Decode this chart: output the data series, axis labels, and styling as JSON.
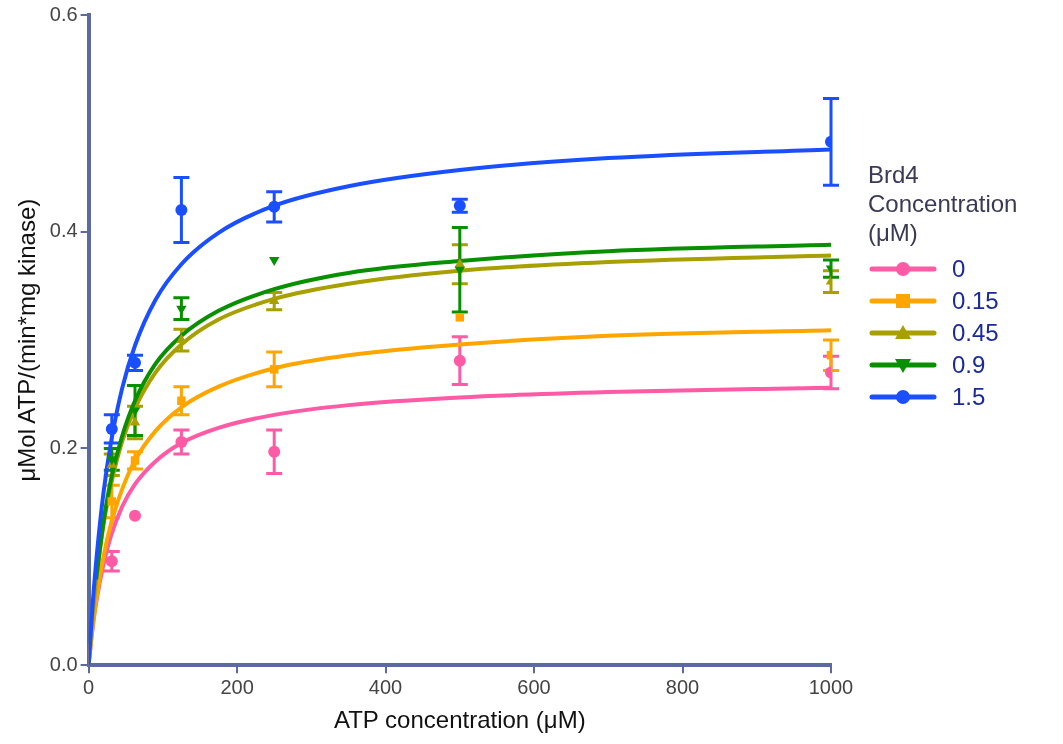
{
  "chart_data": {
    "type": "scatter",
    "xlabel": "ATP concentration (μM)",
    "ylabel": "μMol ATP/(min*mg kinase)",
    "legend_title": "Brd4 Concentration (μM)",
    "legend": "right",
    "grid": false,
    "xlim": [
      0,
      1000
    ],
    "xticks": [
      0,
      200,
      400,
      600,
      800,
      1000
    ],
    "ylim": [
      0,
      0.6
    ],
    "yticks": [
      {
        "value": 0,
        "label": "0.0"
      },
      0.2,
      0.4,
      0.6
    ],
    "series": [
      {
        "type": "line",
        "color": "#ff5aa5",
        "marker": "none",
        "x": [
          0,
          5,
          10,
          20,
          30,
          45,
          62.5,
          90,
          125,
          175,
          250,
          350,
          500,
          700,
          1000
        ],
        "values": [
          0,
          0.032,
          0.057,
          0.093,
          0.119,
          0.146,
          0.167,
          0.188,
          0.205,
          0.219,
          0.231,
          0.24,
          0.247,
          0.252,
          0.256
        ]
      },
      {
        "type": "line",
        "color": "#ffa500",
        "marker": "none",
        "x": [
          0,
          5,
          10,
          20,
          30,
          45,
          62.5,
          90,
          125,
          175,
          250,
          350,
          500,
          700,
          1000
        ],
        "values": [
          0,
          0.033,
          0.059,
          0.1,
          0.13,
          0.162,
          0.189,
          0.216,
          0.238,
          0.257,
          0.274,
          0.286,
          0.296,
          0.304,
          0.309
        ]
      },
      {
        "type": "line",
        "color": "#a8a000",
        "marker": "none",
        "x": [
          0,
          5,
          10,
          20,
          30,
          45,
          62.5,
          90,
          125,
          175,
          250,
          350,
          500,
          700,
          1000
        ],
        "values": [
          0,
          0.043,
          0.077,
          0.129,
          0.166,
          0.206,
          0.237,
          0.27,
          0.296,
          0.319,
          0.338,
          0.352,
          0.364,
          0.372,
          0.378
        ]
      },
      {
        "type": "line",
        "color": "#089000",
        "marker": "none",
        "x": [
          10,
          20,
          30,
          45,
          62.5,
          90,
          125,
          175,
          250,
          350,
          500,
          700,
          1000
        ],
        "values": [
          0.079,
          0.132,
          0.171,
          0.211,
          0.244,
          0.278,
          0.304,
          0.327,
          0.347,
          0.362,
          0.373,
          0.382,
          0.388
        ]
      },
      {
        "type": "line",
        "color": "#1a4fff",
        "marker": "none",
        "x": [
          0,
          5,
          10,
          20,
          30,
          45,
          62.5,
          90,
          125,
          175,
          250,
          350,
          500,
          700,
          1000
        ],
        "values": [
          0,
          0.052,
          0.094,
          0.159,
          0.205,
          0.255,
          0.295,
          0.337,
          0.37,
          0.399,
          0.424,
          0.442,
          0.457,
          0.468,
          0.476
        ]
      },
      {
        "name": "0",
        "type": "scatter",
        "color": "#ff5aa5",
        "marker": "circle",
        "x": [
          31.25,
          62.5,
          125,
          250,
          500,
          1000
        ],
        "values": [
          0.096,
          0.138,
          0.206,
          0.197,
          0.281,
          0.27
        ],
        "errors": [
          0.009,
          null,
          0.011,
          0.02,
          0.022,
          0.015
        ]
      },
      {
        "name": "0.15",
        "type": "scatter",
        "color": "#ffa500",
        "marker": "square",
        "x": [
          31.25,
          62.5,
          125,
          250,
          500,
          1000
        ],
        "values": [
          0.151,
          0.189,
          0.244,
          0.273,
          0.321,
          0.286
        ],
        "errors": [
          0.015,
          0.008,
          0.013,
          0.016,
          null,
          0.014
        ]
      },
      {
        "name": "0.45",
        "type": "scatter",
        "color": "#a8a000",
        "marker": "triangle",
        "x": [
          31.25,
          62.5,
          125,
          250,
          500,
          1000
        ],
        "values": [
          0.185,
          0.224,
          0.3,
          0.336,
          0.37,
          0.354
        ],
        "errors": [
          0.01,
          0.015,
          0.01,
          0.008,
          0.018,
          0.01
        ]
      },
      {
        "name": "0.9",
        "type": "scatter",
        "color": "#089000",
        "marker": "triangle-down",
        "x": [
          31.25,
          62.5,
          125,
          250,
          500,
          1000
        ],
        "values": [
          0.19,
          0.235,
          0.329,
          0.374,
          0.365,
          0.366
        ],
        "errors": [
          0.01,
          0.023,
          0.01,
          null,
          0.039,
          0.008
        ]
      },
      {
        "name": "1.5",
        "type": "scatter",
        "color": "#1a4fff",
        "marker": "circle",
        "x": [
          31.25,
          62.5,
          125,
          250,
          500,
          1000
        ],
        "values": [
          0.218,
          0.279,
          0.42,
          0.423,
          0.424,
          0.483
        ],
        "errors": [
          0.013,
          0.007,
          0.03,
          0.014,
          0.006,
          0.04
        ]
      }
    ]
  }
}
